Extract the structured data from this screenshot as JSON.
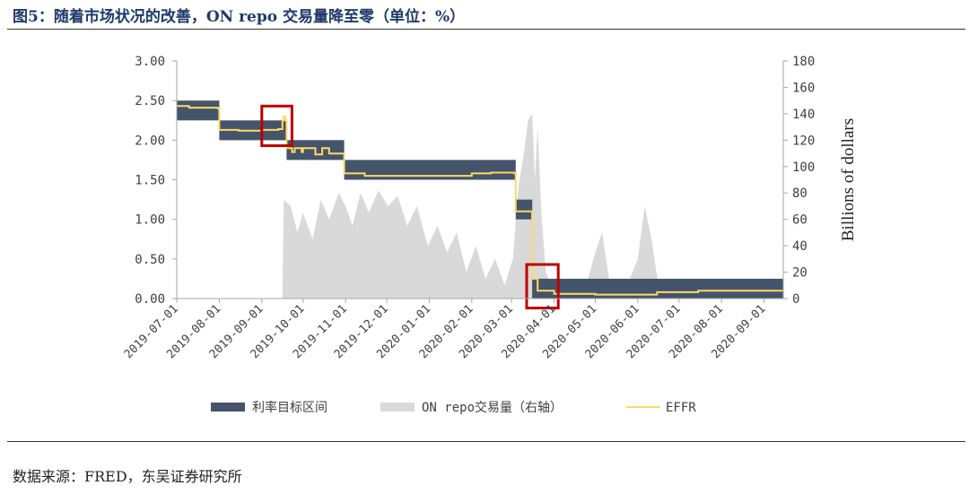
{
  "title": "图5：随着市场状况的改善，ON repo 交易量降至零（单位：%）",
  "source": "数据来源：FRED，东吴证券研究所",
  "chart_data": {
    "type": "area",
    "y_left": {
      "ticks": [
        "3.00",
        "2.50",
        "2.00",
        "1.50",
        "1.00",
        "0.50",
        "0.00"
      ],
      "ylim": [
        0,
        3
      ]
    },
    "y_right": {
      "label": "Billions of dollars",
      "ticks": [
        "180",
        "160",
        "140",
        "120",
        "100",
        "80",
        "60",
        "40",
        "20",
        "0"
      ],
      "ylim": [
        0,
        180
      ]
    },
    "x_ticks": [
      "2019-07-01",
      "2019-08-01",
      "2019-09-01",
      "2019-10-01",
      "2019-11-01",
      "2019-12-01",
      "2020-01-01",
      "2020-02-01",
      "2020-03-01",
      "2020-04-01",
      "2020-05-01",
      "2020-06-01",
      "2020-07-01",
      "2020-08-01",
      "2020-09-01"
    ],
    "x_range": [
      "2019-07-01",
      "2020-09-15"
    ],
    "legend": [
      "利率目标区间",
      "ON repo交易量（右轴）",
      "EFFR"
    ],
    "legend_position": "bottom",
    "colors": {
      "band": "#44546a",
      "repo": "#d9d9d9",
      "effr": "#ffd966",
      "highlight": "#c00000"
    },
    "target_range": [
      {
        "start": "2019-07-01",
        "end": "2019-08-01",
        "lower": 2.25,
        "upper": 2.5
      },
      {
        "start": "2019-08-01",
        "end": "2019-09-19",
        "lower": 2.0,
        "upper": 2.25
      },
      {
        "start": "2019-09-19",
        "end": "2019-10-31",
        "lower": 1.75,
        "upper": 2.0
      },
      {
        "start": "2019-10-31",
        "end": "2020-03-04",
        "lower": 1.5,
        "upper": 1.75
      },
      {
        "start": "2020-03-04",
        "end": "2020-03-16",
        "lower": 1.0,
        "upper": 1.25
      },
      {
        "start": "2020-03-16",
        "end": "2020-09-15",
        "lower": 0.0,
        "upper": 0.25
      }
    ],
    "effr": [
      {
        "date": "2019-07-01",
        "value": 2.43
      },
      {
        "date": "2019-07-10",
        "value": 2.41
      },
      {
        "date": "2019-07-20",
        "value": 2.41
      },
      {
        "date": "2019-07-31",
        "value": 2.4
      },
      {
        "date": "2019-08-01",
        "value": 2.13
      },
      {
        "date": "2019-08-15",
        "value": 2.12
      },
      {
        "date": "2019-09-01",
        "value": 2.13
      },
      {
        "date": "2019-09-13",
        "value": 2.14
      },
      {
        "date": "2019-09-16",
        "value": 2.25
      },
      {
        "date": "2019-09-17",
        "value": 2.3
      },
      {
        "date": "2019-09-18",
        "value": 2.25
      },
      {
        "date": "2019-09-19",
        "value": 1.9
      },
      {
        "date": "2019-09-23",
        "value": 1.85
      },
      {
        "date": "2019-09-25",
        "value": 1.9
      },
      {
        "date": "2019-09-30",
        "value": 1.85
      },
      {
        "date": "2019-10-01",
        "value": 1.9
      },
      {
        "date": "2019-10-10",
        "value": 1.82
      },
      {
        "date": "2019-10-15",
        "value": 1.9
      },
      {
        "date": "2019-10-20",
        "value": 1.83
      },
      {
        "date": "2019-10-30",
        "value": 1.83
      },
      {
        "date": "2019-10-31",
        "value": 1.58
      },
      {
        "date": "2019-11-15",
        "value": 1.55
      },
      {
        "date": "2019-12-15",
        "value": 1.55
      },
      {
        "date": "2020-01-15",
        "value": 1.55
      },
      {
        "date": "2020-02-01",
        "value": 1.58
      },
      {
        "date": "2020-02-15",
        "value": 1.59
      },
      {
        "date": "2020-03-03",
        "value": 1.58
      },
      {
        "date": "2020-03-04",
        "value": 1.1
      },
      {
        "date": "2020-03-15",
        "value": 1.1
      },
      {
        "date": "2020-03-16",
        "value": 0.25
      },
      {
        "date": "2020-03-20",
        "value": 0.1
      },
      {
        "date": "2020-04-01",
        "value": 0.06
      },
      {
        "date": "2020-05-01",
        "value": 0.05
      },
      {
        "date": "2020-06-01",
        "value": 0.05
      },
      {
        "date": "2020-06-15",
        "value": 0.08
      },
      {
        "date": "2020-07-15",
        "value": 0.1
      },
      {
        "date": "2020-08-15",
        "value": 0.1
      },
      {
        "date": "2020-09-15",
        "value": 0.09
      }
    ],
    "on_repo_volume": [
      {
        "date": "2019-07-01",
        "value": 0
      },
      {
        "date": "2019-09-16",
        "value": 0
      },
      {
        "date": "2019-09-17",
        "value": 75
      },
      {
        "date": "2019-09-22",
        "value": 70
      },
      {
        "date": "2019-09-27",
        "value": 50
      },
      {
        "date": "2019-10-01",
        "value": 65
      },
      {
        "date": "2019-10-08",
        "value": 45
      },
      {
        "date": "2019-10-14",
        "value": 75
      },
      {
        "date": "2019-10-20",
        "value": 60
      },
      {
        "date": "2019-10-27",
        "value": 80
      },
      {
        "date": "2019-11-01",
        "value": 70
      },
      {
        "date": "2019-11-06",
        "value": 55
      },
      {
        "date": "2019-11-12",
        "value": 80
      },
      {
        "date": "2019-11-18",
        "value": 65
      },
      {
        "date": "2019-11-25",
        "value": 82
      },
      {
        "date": "2019-12-02",
        "value": 70
      },
      {
        "date": "2019-12-09",
        "value": 78
      },
      {
        "date": "2019-12-16",
        "value": 55
      },
      {
        "date": "2019-12-23",
        "value": 70
      },
      {
        "date": "2019-12-31",
        "value": 40
      },
      {
        "date": "2020-01-07",
        "value": 55
      },
      {
        "date": "2020-01-14",
        "value": 35
      },
      {
        "date": "2020-01-21",
        "value": 50
      },
      {
        "date": "2020-01-28",
        "value": 20
      },
      {
        "date": "2020-02-04",
        "value": 40
      },
      {
        "date": "2020-02-11",
        "value": 15
      },
      {
        "date": "2020-02-18",
        "value": 30
      },
      {
        "date": "2020-02-25",
        "value": 10
      },
      {
        "date": "2020-03-02",
        "value": 30
      },
      {
        "date": "2020-03-06",
        "value": 85
      },
      {
        "date": "2020-03-10",
        "value": 110
      },
      {
        "date": "2020-03-13",
        "value": 135
      },
      {
        "date": "2020-03-16",
        "value": 140
      },
      {
        "date": "2020-03-18",
        "value": 90
      },
      {
        "date": "2020-03-20",
        "value": 130
      },
      {
        "date": "2020-03-23",
        "value": 60
      },
      {
        "date": "2020-03-26",
        "value": 20
      },
      {
        "date": "2020-04-01",
        "value": 5
      },
      {
        "date": "2020-04-15",
        "value": 8
      },
      {
        "date": "2020-04-25",
        "value": 12
      },
      {
        "date": "2020-05-01",
        "value": 35
      },
      {
        "date": "2020-05-06",
        "value": 50
      },
      {
        "date": "2020-05-11",
        "value": 15
      },
      {
        "date": "2020-05-18",
        "value": 8
      },
      {
        "date": "2020-05-25",
        "value": 12
      },
      {
        "date": "2020-06-01",
        "value": 30
      },
      {
        "date": "2020-06-06",
        "value": 70
      },
      {
        "date": "2020-06-11",
        "value": 45
      },
      {
        "date": "2020-06-16",
        "value": 10
      },
      {
        "date": "2020-06-23",
        "value": 5
      },
      {
        "date": "2020-07-01",
        "value": 0
      },
      {
        "date": "2020-09-15",
        "value": 0
      }
    ],
    "highlights": [
      {
        "start": "2019-09-01",
        "end": "2019-09-23",
        "low": 1.93,
        "high": 2.43
      },
      {
        "start": "2020-03-12",
        "end": "2020-04-04",
        "low": -0.12,
        "high": 0.43
      }
    ]
  }
}
